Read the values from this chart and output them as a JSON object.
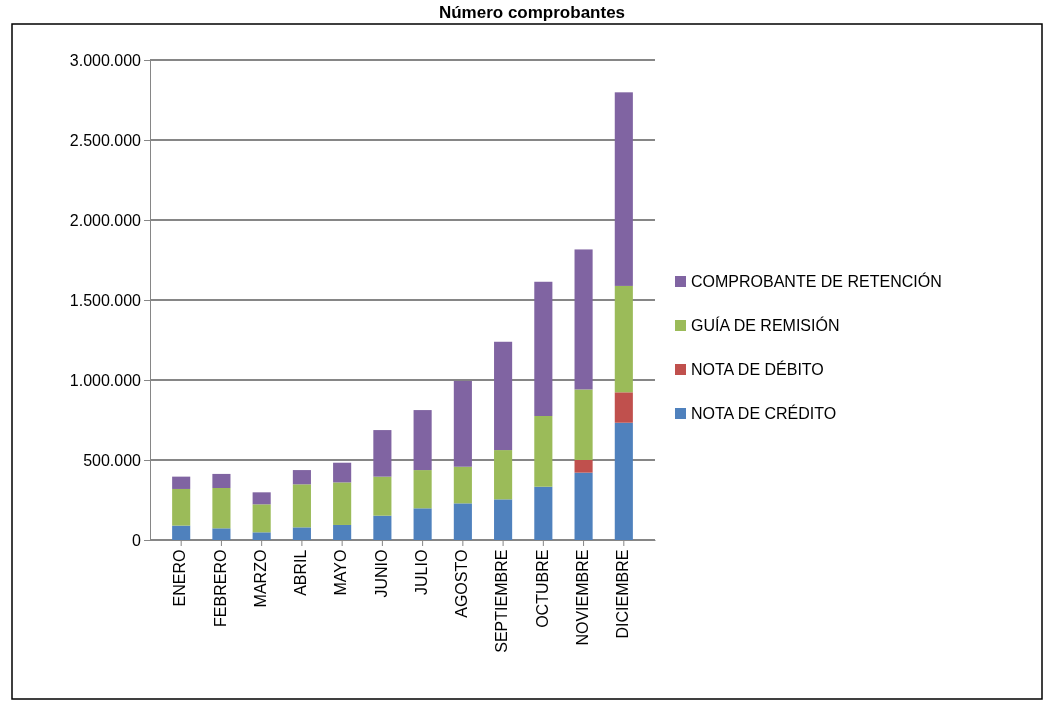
{
  "chart_data": {
    "type": "bar",
    "title": "Número comprobantes",
    "stacked": true,
    "grid": "y",
    "legend": "right",
    "categories": [
      "ENERO",
      "FEBRERO",
      "MARZO",
      "ABRIL",
      "MAYO",
      "JUNIO",
      "JULIO",
      "AGOSTO",
      "SEPTIEMBRE",
      "OCTUBRE",
      "NOVIEMBRE",
      "DICIEMBRE"
    ],
    "ylim": [
      0,
      3000000
    ],
    "yticks": [
      0,
      {
        "value": 500000,
        "label": "500.000"
      },
      {
        "value": 1000000,
        "label": "1.000.000"
      },
      {
        "value": 1500000,
        "label": "1.500.000"
      },
      {
        "value": 2000000,
        "label": "2.000.000"
      },
      {
        "value": 2500000,
        "label": "2.500.000"
      },
      {
        "value": 3000000,
        "label": "3.000.000"
      }
    ],
    "series": [
      {
        "name": "NOTA DE CRÉDITO",
        "color": "#4f81bd",
        "values": [
          90000,
          73000,
          48000,
          79000,
          94000,
          152000,
          198000,
          229000,
          254000,
          333000,
          421000,
          733000
        ]
      },
      {
        "name": "NOTA DE DÉBITO",
        "color": "#c0504d",
        "values": [
          0,
          null,
          0,
          0,
          0,
          0,
          0,
          0,
          0,
          0,
          79000,
          190000
        ]
      },
      {
        "name": "GUÍA DE REMISIÓN",
        "color": "#9bbb59",
        "values": [
          229000,
          252000,
          175000,
          269000,
          266000,
          244000,
          239000,
          229000,
          308000,
          442000,
          441000,
          665000
        ]
      },
      {
        "name": "COMPROBANTE DE RETENCIÓN",
        "color": "#8064a2",
        "values": [
          77000,
          88000,
          75000,
          89000,
          123000,
          291000,
          375000,
          536000,
          677000,
          839000,
          875000,
          1210000
        ]
      }
    ]
  }
}
